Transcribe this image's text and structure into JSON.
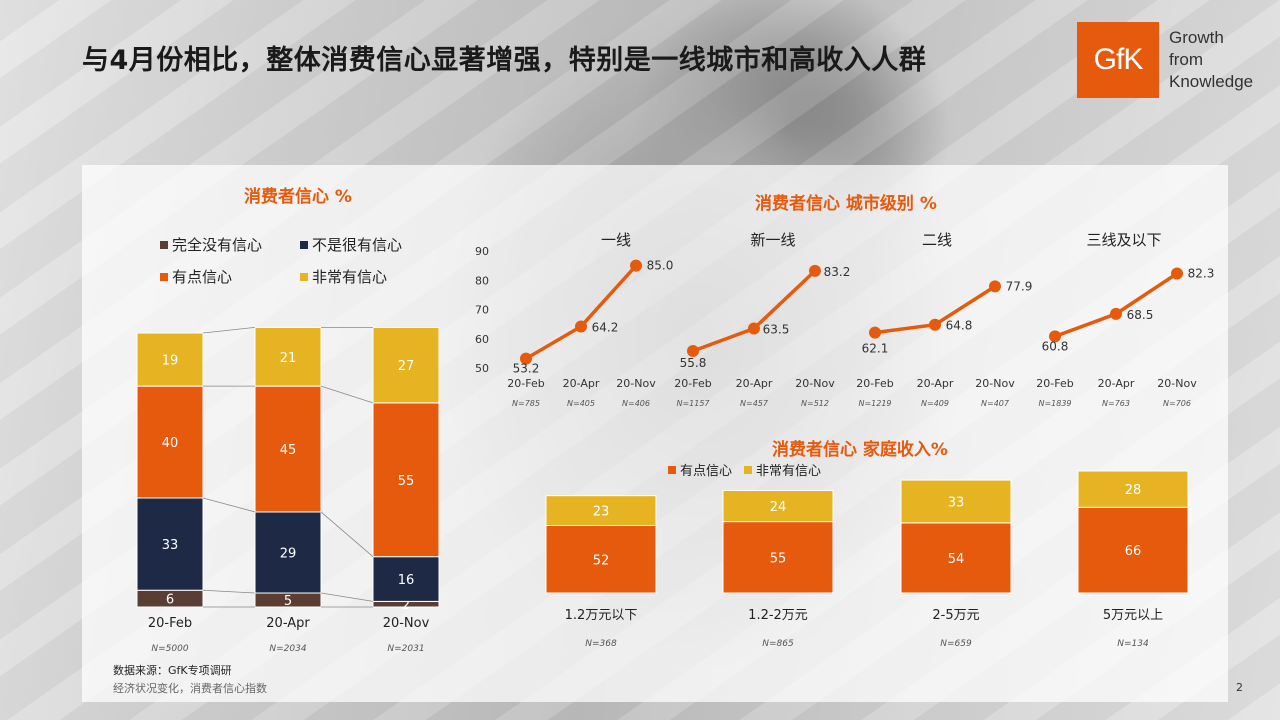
{
  "title": "与4月份相比，整体消费信心显著增强，特别是一线城市和高收入人群",
  "logo": {
    "text": "GfK",
    "tagline": [
      "Growth",
      "from",
      "Knowledge"
    ]
  },
  "colors": {
    "dark_brown": "#5a3d33",
    "navy": "#1e2a45",
    "orange": "#e55a0c",
    "gold": "#e6b422"
  },
  "source": {
    "line1": "数据来源：GfK专项调研",
    "line2": "经济状况变化，消费者信心指数"
  },
  "page_number": "2",
  "chart_data": [
    {
      "type": "bar",
      "stacked": true,
      "title": "消费者信心 %",
      "categories": [
        "20-Feb",
        "20-Apr",
        "20-Nov"
      ],
      "sample_sizes": [
        "N=5000",
        "N=2034",
        "N=2031"
      ],
      "series": [
        {
          "name": "完全没有信心",
          "color": "#5a3d33",
          "values": [
            6,
            5,
            2
          ]
        },
        {
          "name": "不是很有信心",
          "color": "#1e2a45",
          "values": [
            33,
            29,
            16
          ]
        },
        {
          "name": "有点信心",
          "color": "#e55a0c",
          "values": [
            40,
            45,
            55
          ]
        },
        {
          "name": "非常有信心",
          "color": "#e6b422",
          "values": [
            19,
            21,
            27
          ]
        }
      ]
    },
    {
      "type": "line",
      "title": "消费者信心 城市级别 %",
      "ylim": [
        50,
        90
      ],
      "yticks": [
        50,
        60,
        70,
        80,
        90
      ],
      "groups": [
        {
          "name": "一线",
          "x": [
            "20-Feb",
            "20-Apr",
            "20-Nov"
          ],
          "values": [
            53.2,
            64.2,
            85.0
          ],
          "labels": [
            "53.2",
            "64.2",
            "85.0"
          ],
          "sample_sizes": [
            "N=785",
            "N=405",
            "N=406"
          ]
        },
        {
          "name": "新一线",
          "x": [
            "20-Feb",
            "20-Apr",
            "20-Nov"
          ],
          "values": [
            55.8,
            63.5,
            83.2
          ],
          "labels": [
            "55.8",
            "63.5",
            "83.2"
          ],
          "sample_sizes": [
            "N=1157",
            "N=457",
            "N=512"
          ]
        },
        {
          "name": "二线",
          "x": [
            "20-Feb",
            "20-Apr",
            "20-Nov"
          ],
          "values": [
            62.1,
            64.8,
            77.9
          ],
          "labels": [
            "62.1",
            "64.8",
            "77.9"
          ],
          "sample_sizes": [
            "N=1219",
            "N=409",
            "N=407"
          ]
        },
        {
          "name": "三线及以下",
          "x": [
            "20-Feb",
            "20-Apr",
            "20-Nov"
          ],
          "values": [
            60.8,
            68.5,
            82.3
          ],
          "labels": [
            "60.8",
            "68.5",
            "82.3"
          ],
          "sample_sizes": [
            "N=1839",
            "N=763",
            "N=706"
          ]
        }
      ]
    },
    {
      "type": "bar",
      "stacked": true,
      "title": "消费者信心 家庭收入%",
      "categories": [
        "1.2万元以下",
        "1.2-2万元",
        "2-5万元",
        "5万元以上"
      ],
      "sample_sizes": [
        "N=368",
        "N=865",
        "N=659",
        "N=134"
      ],
      "series": [
        {
          "name": "有点信心",
          "color": "#e55a0c",
          "values": [
            52,
            55,
            54,
            66
          ]
        },
        {
          "name": "非常有信心",
          "color": "#e6b422",
          "values": [
            23,
            24,
            33,
            28
          ]
        }
      ]
    }
  ]
}
